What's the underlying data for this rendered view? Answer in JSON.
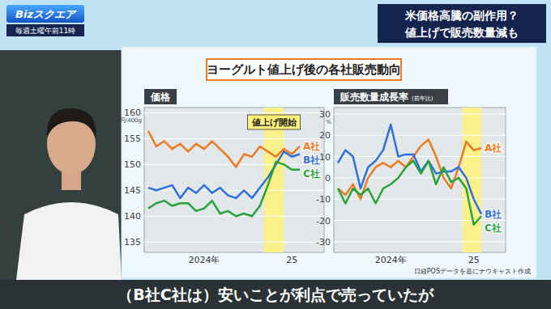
{
  "header": {
    "logo": "Bizスクエア",
    "schedule": "毎週土曜午前11時",
    "headline": [
      "米価格高騰の副作用？",
      "値上げで販売数量減も"
    ]
  },
  "title": "ヨーグルト値上げ後の各社販売動向",
  "chart_data": [
    {
      "type": "line",
      "title": "価格",
      "y_label": "円/400g",
      "categories": [
        null,
        null,
        null,
        null,
        null,
        null,
        null,
        "2024年",
        null,
        null,
        null,
        null,
        null,
        null,
        null,
        null,
        null,
        null,
        "25",
        null
      ],
      "series": [
        {
          "name": "A社",
          "color": "#f07a1f",
          "values": [
            156.5,
            153.5,
            154.5,
            153,
            154,
            152.5,
            154,
            153,
            154.5,
            153,
            151.5,
            149.5,
            152,
            151.5,
            153.5,
            152.5,
            151.5,
            153,
            152,
            153.5
          ]
        },
        {
          "name": "B社",
          "color": "#2f6fe0",
          "values": [
            145.5,
            145,
            145.5,
            146,
            143.5,
            145.5,
            144.5,
            146,
            144.5,
            145.5,
            144,
            143.5,
            145,
            143.5,
            145.5,
            147.5,
            150,
            152.5,
            151.5,
            152
          ]
        },
        {
          "name": "C社",
          "color": "#27a33a",
          "values": [
            141.5,
            142.5,
            143,
            142,
            142.5,
            142.5,
            141,
            141.5,
            143,
            140.5,
            141,
            140,
            140.5,
            140,
            142,
            146,
            150.5,
            150,
            149,
            149
          ]
        }
      ],
      "ylim": [
        133,
        161
      ],
      "yticks": [
        135,
        140,
        145,
        150,
        155,
        160
      ],
      "grid": true,
      "annotations": [
        {
          "text": "値上げ開始",
          "x_start": 14.5,
          "x_end": 17
        }
      ]
    },
    {
      "type": "line",
      "title": "販売数量成長率",
      "subtitle": "(前年比)",
      "y_label": "%",
      "categories": [
        null,
        null,
        null,
        null,
        null,
        null,
        null,
        "2024年",
        null,
        null,
        null,
        null,
        null,
        null,
        null,
        null,
        null,
        null,
        "25",
        null
      ],
      "series": [
        {
          "name": "A社",
          "color": "#f07a1f",
          "values": [
            -5,
            -8,
            -3,
            -10,
            0,
            5,
            7,
            5,
            8,
            5,
            10,
            15,
            18,
            10,
            0,
            -5,
            5,
            17,
            13,
            14
          ]
        },
        {
          "name": "B社",
          "color": "#2f6fe0",
          "values": [
            7,
            13,
            10,
            -5,
            5,
            8,
            13,
            25,
            10,
            11,
            11,
            3,
            8,
            2,
            3,
            3,
            5,
            0,
            -10,
            -17
          ]
        },
        {
          "name": "C社",
          "color": "#27a33a",
          "values": [
            -5,
            -12,
            -5,
            -8,
            -5,
            -12,
            -5,
            -3,
            0,
            5,
            8,
            2,
            8,
            -3,
            5,
            -2,
            0,
            -5,
            -22,
            -18
          ]
        }
      ],
      "ylim": [
        -35,
        33
      ],
      "yticks": [
        -30,
        -20,
        -10,
        0,
        10,
        20,
        30
      ],
      "grid": true,
      "annotations": [
        {
          "x_start": 16.5,
          "x_end": 19
        }
      ]
    }
  ],
  "source": "日経POSデータを基にナウキャスト作成",
  "caption": "（B社C社は）安いことが利点で売っていたが"
}
